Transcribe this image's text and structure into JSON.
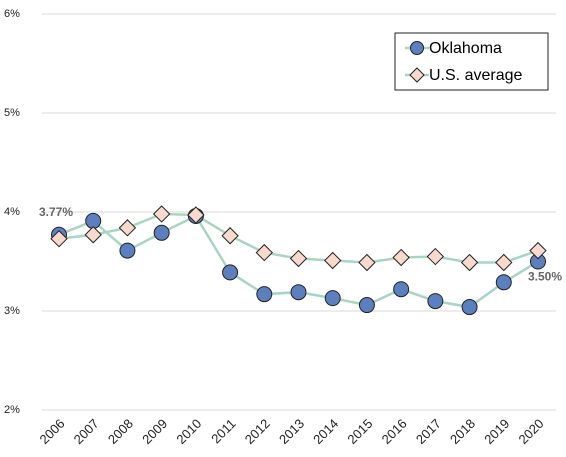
{
  "chart_data": {
    "type": "line",
    "categories": [
      "2006",
      "2007",
      "2008",
      "2009",
      "2010",
      "2011",
      "2012",
      "2013",
      "2014",
      "2015",
      "2016",
      "2017",
      "2018",
      "2019",
      "2020"
    ],
    "series": [
      {
        "name": "Oklahoma",
        "color": "#5b7fbf",
        "marker": "circle",
        "values": [
          3.77,
          3.91,
          3.61,
          3.79,
          3.96,
          3.39,
          3.17,
          3.19,
          3.13,
          3.06,
          3.22,
          3.1,
          3.04,
          3.29,
          3.5
        ],
        "value_labels": [
          "3.77%",
          null,
          null,
          null,
          null,
          null,
          null,
          null,
          null,
          null,
          null,
          null,
          null,
          null,
          "3.50%"
        ]
      },
      {
        "name": "U.S. average",
        "color": "#f8d9cc",
        "marker": "diamond",
        "values": [
          3.73,
          3.77,
          3.84,
          3.98,
          3.97,
          3.76,
          3.59,
          3.53,
          3.51,
          3.49,
          3.54,
          3.55,
          3.49,
          3.49,
          3.61
        ]
      }
    ],
    "line_color": "#a8d5c2",
    "ylim": [
      2,
      6
    ],
    "yticks": [
      {
        "value": 2,
        "label": "2%"
      },
      {
        "value": 3,
        "label": "3%"
      },
      {
        "value": 4,
        "label": "4%"
      },
      {
        "value": 5,
        "label": "5%"
      },
      {
        "value": 6,
        "label": "6%"
      }
    ],
    "grid": true,
    "legend": "top-right"
  }
}
